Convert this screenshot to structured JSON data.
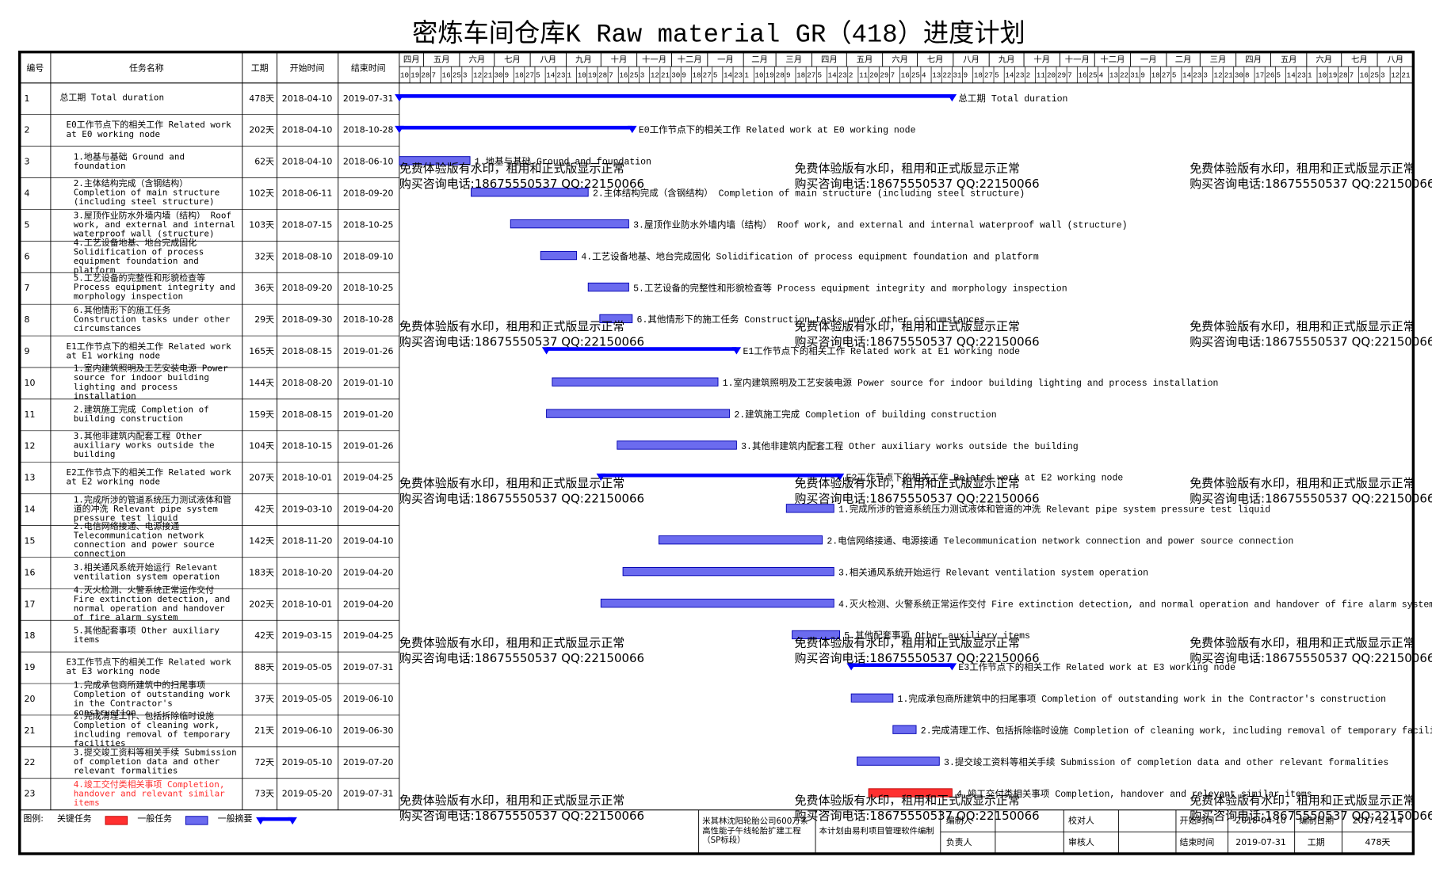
{
  "chart_data": {
    "type": "gantt",
    "title": "密炼车间仓库K Raw material GR（418）进度计划",
    "columns": [
      "编号",
      "任务名称",
      "工期",
      "开始时间",
      "结束时间"
    ],
    "ids": [
      1,
      2,
      3,
      4,
      5,
      6,
      7,
      8,
      9,
      10,
      11,
      12,
      13,
      14,
      15,
      16,
      17,
      18,
      19,
      20,
      21,
      22,
      23
    ],
    "tasks": [
      "总工期 Total duration",
      "E0工作节点下的相关工作 Related work at E0 working node",
      "1.地基与基础 Ground and foundation",
      "2.主体结构完成（含钢结构） Completion of main structure (including steel structure)",
      "3.屋顶作业防水外墙内墙（结构） Roof work, and external and internal waterproof wall (structure)",
      "4.工艺设备地基、地台完成固化 Solidification of process equipment foundation and platform",
      "5.工艺设备的完整性和形貌检查等 Process equipment integrity and morphology inspection",
      "6.其他情形下的施工任务 Construction tasks under other circumstances",
      "E1工作节点下的相关工作 Related work at E1 working node",
      "1.室内建筑照明及工艺安装电源 Power source for indoor building lighting and process installation",
      "2.建筑施工完成 Completion of building construction",
      "3.其他非建筑内配套工程 Other auxiliary works outside the building",
      "E2工作节点下的相关工作 Related work at E2 working node",
      "1.完成所涉的管道系统压力测试液体和管道的冲洗 Relevant pipe system pressure test liquid",
      "2.电信网络接通、电源接通 Telecommunication network connection and power source connection",
      "3.相关通风系统开始运行 Relevant ventilation system operation",
      "4.灭火检测、火警系统正常运作交付 Fire extinction detection, and normal operation and handover of fire alarm system",
      "5.其他配套事项 Other auxiliary items",
      "E3工作节点下的相关工作 Related work at E3 working node",
      "1.完成承包商所建筑中的扫尾事项 Completion of outstanding work in the Contractor's construction",
      "2.完成清理工作、包括拆除临时设施 Completion of cleaning work, including removal of temporary facilities",
      "3.提交竣工资料等相关手续 Submission of completion data and other relevant formalities",
      "4.竣工交付类相关事项 Completion, handover and relevant similar items"
    ],
    "values": [
      478,
      202,
      62,
      102,
      103,
      32,
      36,
      29,
      165,
      144,
      159,
      104,
      207,
      42,
      142,
      183,
      202,
      42,
      88,
      37,
      21,
      72,
      73
    ],
    "value_labels": [
      "478天",
      "202天",
      "62天",
      "102天",
      "103天",
      "32天",
      "36天",
      "29天",
      "165天",
      "144天",
      "159天",
      "104天",
      "207天",
      "42天",
      "142天",
      "183天",
      "202天",
      "42天",
      "88天",
      "37天",
      "21天",
      "72天",
      "73天"
    ],
    "starts": [
      "2018-04-10",
      "2018-04-10",
      "2018-04-10",
      "2018-06-11",
      "2018-07-15",
      "2018-08-10",
      "2018-09-20",
      "2018-09-30",
      "2018-08-15",
      "2018-08-20",
      "2018-08-15",
      "2018-10-15",
      "2018-10-01",
      "2019-03-10",
      "2018-11-20",
      "2018-10-20",
      "2018-10-01",
      "2019-03-15",
      "2019-05-05",
      "2019-05-05",
      "2019-06-10",
      "2019-05-10",
      "2019-05-20"
    ],
    "ends": [
      "2019-07-31",
      "2018-10-28",
      "2018-06-10",
      "2018-09-20",
      "2018-10-25",
      "2018-09-10",
      "2018-10-25",
      "2018-10-28",
      "2019-01-26",
      "2019-01-10",
      "2019-01-20",
      "2019-01-26",
      "2019-04-25",
      "2019-04-20",
      "2019-04-10",
      "2019-04-20",
      "2019-04-20",
      "2019-04-25",
      "2019-07-31",
      "2019-06-10",
      "2019-06-30",
      "2019-07-20",
      "2019-07-31"
    ],
    "kinds": [
      "summary",
      "summary",
      "normal",
      "normal",
      "normal",
      "normal",
      "normal",
      "normal",
      "summary",
      "normal",
      "normal",
      "normal",
      "summary",
      "normal",
      "normal",
      "normal",
      "normal",
      "normal",
      "summary",
      "normal",
      "normal",
      "normal",
      "critical"
    ],
    "colors": {
      "summary": "#0000ff",
      "normal": "#6b6bef",
      "critical": "#ff3030"
    },
    "xlim": [
      "2018-04-10",
      "2020-09-01"
    ],
    "month_ticks": [
      {
        "value": "2018-04",
        "label": "四月"
      },
      {
        "value": "2018-05",
        "label": "五月"
      },
      {
        "value": "2018-06",
        "label": "六月"
      },
      {
        "value": "2018-07",
        "label": "七月"
      },
      {
        "value": "2018-08",
        "label": "八月"
      },
      {
        "value": "2018-09",
        "label": "九月"
      },
      {
        "value": "2018-10",
        "label": "十月"
      },
      {
        "value": "2018-11",
        "label": "十一月"
      },
      {
        "value": "2018-12",
        "label": "十二月"
      },
      {
        "value": "2019-01",
        "label": "一月"
      },
      {
        "value": "2019-02",
        "label": "二月"
      },
      {
        "value": "2019-03",
        "label": "三月"
      },
      {
        "value": "2019-04",
        "label": "四月"
      },
      {
        "value": "2019-05",
        "label": "五月"
      },
      {
        "value": "2019-06",
        "label": "六月"
      },
      {
        "value": "2019-07",
        "label": "七月"
      },
      {
        "value": "2019-08",
        "label": "八月"
      },
      {
        "value": "2019-09",
        "label": "九月"
      },
      {
        "value": "2019-10",
        "label": "十月"
      },
      {
        "value": "2019-11",
        "label": "十一月"
      },
      {
        "value": "2019-12",
        "label": "十二月"
      },
      {
        "value": "2020-01",
        "label": "一月"
      },
      {
        "value": "2020-02",
        "label": "二月"
      },
      {
        "value": "2020-03",
        "label": "三月"
      },
      {
        "value": "2020-04",
        "label": "四月"
      },
      {
        "value": "2020-05",
        "label": "五月"
      },
      {
        "value": "2020-06",
        "label": "六月"
      },
      {
        "value": "2020-07",
        "label": "七月"
      },
      {
        "value": "2020-08",
        "label": "八月"
      }
    ],
    "day_ticks": [
      {
        "value": "2018-04-10",
        "label": "10"
      },
      {
        "value": "2018-04-19",
        "label": "19"
      },
      {
        "value": "2018-04-28",
        "label": "28"
      },
      {
        "value": "2018-05-07",
        "label": "7"
      },
      {
        "value": "2018-05-16",
        "label": "16"
      },
      {
        "value": "2018-05-25",
        "label": "25"
      },
      {
        "value": "2018-06-03",
        "label": "3"
      },
      {
        "value": "2018-06-12",
        "label": "12"
      },
      {
        "value": "2018-06-21",
        "label": "21"
      },
      {
        "value": "2018-06-30",
        "label": "30"
      },
      {
        "value": "2018-07-09",
        "label": "9"
      },
      {
        "value": "2018-07-18",
        "label": "18"
      },
      {
        "value": "2018-07-27",
        "label": "27"
      },
      {
        "value": "2018-08-05",
        "label": "5"
      },
      {
        "value": "2018-08-14",
        "label": "14"
      },
      {
        "value": "2018-08-23",
        "label": "23"
      },
      {
        "value": "2018-09-01",
        "label": "1"
      },
      {
        "value": "2018-09-10",
        "label": "10"
      },
      {
        "value": "2018-09-19",
        "label": "19"
      },
      {
        "value": "2018-09-28",
        "label": "28"
      },
      {
        "value": "2018-10-07",
        "label": "7"
      },
      {
        "value": "2018-10-16",
        "label": "16"
      },
      {
        "value": "2018-10-25",
        "label": "25"
      },
      {
        "value": "2018-11-03",
        "label": "3"
      },
      {
        "value": "2018-11-12",
        "label": "12"
      },
      {
        "value": "2018-11-21",
        "label": "21"
      },
      {
        "value": "2018-11-30",
        "label": "30"
      },
      {
        "value": "2018-12-09",
        "label": "9"
      },
      {
        "value": "2018-12-18",
        "label": "18"
      },
      {
        "value": "2018-12-27",
        "label": "27"
      },
      {
        "value": "2019-01-05",
        "label": "5"
      },
      {
        "value": "2019-01-14",
        "label": "14"
      },
      {
        "value": "2019-01-23",
        "label": "23"
      },
      {
        "value": "2019-02-01",
        "label": "1"
      },
      {
        "value": "2019-02-10",
        "label": "10"
      },
      {
        "value": "2019-02-19",
        "label": "19"
      },
      {
        "value": "2019-02-28",
        "label": "28"
      },
      {
        "value": "2019-03-09",
        "label": "9"
      },
      {
        "value": "2019-03-18",
        "label": "18"
      },
      {
        "value": "2019-03-27",
        "label": "27"
      },
      {
        "value": "2019-04-05",
        "label": "5"
      },
      {
        "value": "2019-04-14",
        "label": "14"
      },
      {
        "value": "2019-04-23",
        "label": "23"
      },
      {
        "value": "2019-05-02",
        "label": "2"
      },
      {
        "value": "2019-05-11",
        "label": "11"
      },
      {
        "value": "2019-05-20",
        "label": "20"
      },
      {
        "value": "2019-05-29",
        "label": "29"
      },
      {
        "value": "2019-06-07",
        "label": "7"
      },
      {
        "value": "2019-06-16",
        "label": "16"
      },
      {
        "value": "2019-06-25",
        "label": "25"
      },
      {
        "value": "2019-07-04",
        "label": "4"
      },
      {
        "value": "2019-07-13",
        "label": "13"
      },
      {
        "value": "2019-07-22",
        "label": "22"
      },
      {
        "value": "2019-07-31",
        "label": "31"
      },
      {
        "value": "2019-08-09",
        "label": "9"
      },
      {
        "value": "2019-08-18",
        "label": "18"
      },
      {
        "value": "2019-08-27",
        "label": "27"
      },
      {
        "value": "2019-09-05",
        "label": "5"
      },
      {
        "value": "2019-09-14",
        "label": "14"
      },
      {
        "value": "2019-09-23",
        "label": "23"
      },
      {
        "value": "2019-10-02",
        "label": "2"
      },
      {
        "value": "2019-10-11",
        "label": "11"
      },
      {
        "value": "2019-10-20",
        "label": "20"
      },
      {
        "value": "2019-10-29",
        "label": "29"
      },
      {
        "value": "2019-11-07",
        "label": "7"
      },
      {
        "value": "2019-11-16",
        "label": "16"
      },
      {
        "value": "2019-11-25",
        "label": "25"
      },
      {
        "value": "2019-12-04",
        "label": "4"
      },
      {
        "value": "2019-12-13",
        "label": "13"
      },
      {
        "value": "2019-12-22",
        "label": "22"
      },
      {
        "value": "2019-12-31",
        "label": "31"
      },
      {
        "value": "2020-01-09",
        "label": "9"
      },
      {
        "value": "2020-01-18",
        "label": "18"
      },
      {
        "value": "2020-01-27",
        "label": "27"
      },
      {
        "value": "2020-02-05",
        "label": "5"
      },
      {
        "value": "2020-02-14",
        "label": "14"
      },
      {
        "value": "2020-02-23",
        "label": "23"
      },
      {
        "value": "2020-03-03",
        "label": "3"
      },
      {
        "value": "2020-03-12",
        "label": "12"
      },
      {
        "value": "2020-03-21",
        "label": "21"
      },
      {
        "value": "2020-03-30",
        "label": "30"
      },
      {
        "value": "2020-04-08",
        "label": "8"
      },
      {
        "value": "2020-04-17",
        "label": "17"
      },
      {
        "value": "2020-04-26",
        "label": "26"
      },
      {
        "value": "2020-05-05",
        "label": "5"
      },
      {
        "value": "2020-05-14",
        "label": "14"
      },
      {
        "value": "2020-05-23",
        "label": "23"
      },
      {
        "value": "2020-06-01",
        "label": "1"
      },
      {
        "value": "2020-06-10",
        "label": "10"
      },
      {
        "value": "2020-06-19",
        "label": "19"
      },
      {
        "value": "2020-06-28",
        "label": "28"
      },
      {
        "value": "2020-07-07",
        "label": "7"
      },
      {
        "value": "2020-07-16",
        "label": "16"
      },
      {
        "value": "2020-07-25",
        "label": "25"
      },
      {
        "value": "2020-08-03",
        "label": "3"
      },
      {
        "value": "2020-08-12",
        "label": "12"
      },
      {
        "value": "2020-08-21",
        "label": "21"
      }
    ],
    "legend": {
      "title": "图例:",
      "items": [
        {
          "name": "关键任务",
          "kind": "critical"
        },
        {
          "name": "一般任务",
          "kind": "normal"
        },
        {
          "name": "一般摘要",
          "kind": "summary"
        }
      ]
    }
  },
  "footer": {
    "project": "米其林沈阳轮胎公司600万条高性能子午线轮胎扩建工程（SP标段）",
    "software": "本计划由易利项目管理软件编制",
    "compiler": "编制人",
    "manager": "负责人",
    "checker": "校对人",
    "reviewer": "审核人",
    "start_label": "开始时间",
    "start": "2018-04-10",
    "end_label": "结束时间",
    "end": "2019-07-31",
    "date_label": "编制日期",
    "date": "2017-12-14",
    "duration_label": "工期",
    "duration": "478天"
  },
  "watermark": {
    "line1": "免费体验版有水印，租用和正式版显示正常",
    "line2": "购买咨询电话:18675550537 QQ:22150066"
  }
}
